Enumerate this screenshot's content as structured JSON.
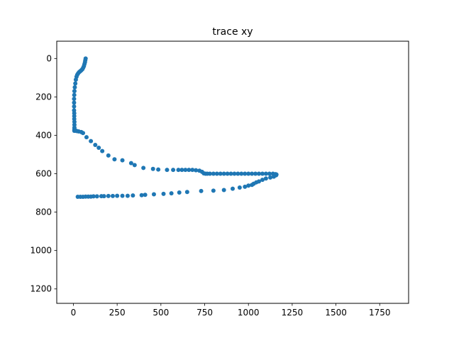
{
  "chart_data": {
    "type": "scatter",
    "title": "trace xy",
    "xlabel": "",
    "ylabel": "",
    "xlim": [
      -95,
      1915
    ],
    "ylim": [
      1275,
      -90
    ],
    "y_inverted": true,
    "grid": false,
    "legend": "none",
    "marker_color": "#1f77b4",
    "x_ticks": [
      0,
      250,
      500,
      750,
      1000,
      1250,
      1500,
      1750
    ],
    "x_tick_labels": [
      "0",
      "250",
      "500",
      "750",
      "1000",
      "1250",
      "1500",
      "1750"
    ],
    "y_ticks": [
      0,
      200,
      400,
      600,
      800,
      1000,
      1200
    ],
    "y_tick_labels": [
      "0",
      "200",
      "400",
      "600",
      "800",
      "1000",
      "1200"
    ],
    "series": [
      {
        "x": [
          70,
          68,
          66,
          63,
          60,
          56,
          52,
          47,
          42,
          37,
          32,
          27,
          22,
          18,
          14,
          11,
          8,
          6,
          5,
          4,
          4,
          4,
          4,
          5,
          5,
          5,
          6,
          6,
          6,
          6,
          6,
          6,
          6,
          6,
          6,
          6,
          6,
          6,
          6,
          7,
          7,
          7,
          7,
          8,
          8,
          8,
          9,
          10,
          12,
          15,
          20,
          30,
          45,
          55,
          75,
          100,
          125,
          145,
          165,
          200,
          235,
          280,
          330,
          350,
          400,
          455,
          485,
          535,
          570,
          600,
          620,
          640,
          660,
          680,
          700,
          720,
          735,
          745,
          755,
          765,
          780,
          800,
          820,
          840,
          860,
          880,
          900,
          920,
          940,
          960,
          980,
          1000,
          1020,
          1040,
          1060,
          1080,
          1100,
          1120,
          1140,
          1155,
          1160,
          1158,
          1145,
          1125,
          1100,
          1080,
          1060,
          1045,
          1030,
          1020,
          1000,
          980,
          950,
          910,
          860,
          800,
          730,
          650,
          605,
          560,
          515,
          460,
          410,
          390,
          340,
          310,
          280,
          250,
          225,
          200,
          175,
          160,
          135,
          115,
          100,
          85,
          70,
          55,
          40,
          25
        ],
        "y": [
          0,
          10,
          20,
          30,
          40,
          48,
          55,
          60,
          64,
          68,
          72,
          78,
          85,
          95,
          110,
          130,
          150,
          170,
          190,
          210,
          230,
          250,
          270,
          285,
          300,
          315,
          330,
          345,
          360,
          368,
          372,
          375,
          375,
          375,
          376,
          376,
          376,
          376,
          376,
          376,
          376,
          376,
          376,
          376,
          376,
          376,
          376,
          376,
          376,
          376,
          378,
          380,
          383,
          388,
          410,
          430,
          450,
          465,
          482,
          505,
          525,
          530,
          545,
          555,
          570,
          575,
          578,
          580,
          580,
          580,
          580,
          580,
          580,
          580,
          582,
          584,
          590,
          598,
          600,
          600,
          600,
          600,
          600,
          600,
          600,
          600,
          600,
          600,
          600,
          600,
          600,
          600,
          600,
          600,
          600,
          600,
          600,
          600,
          600,
          602,
          604,
          608,
          615,
          620,
          625,
          632,
          640,
          645,
          652,
          658,
          662,
          668,
          672,
          678,
          685,
          688,
          690,
          695,
          698,
          702,
          705,
          707,
          710,
          712,
          713,
          715,
          715,
          715,
          716,
          716,
          717,
          717,
          718,
          718,
          719,
          719,
          719,
          720,
          720,
          720
        ]
      }
    ]
  }
}
